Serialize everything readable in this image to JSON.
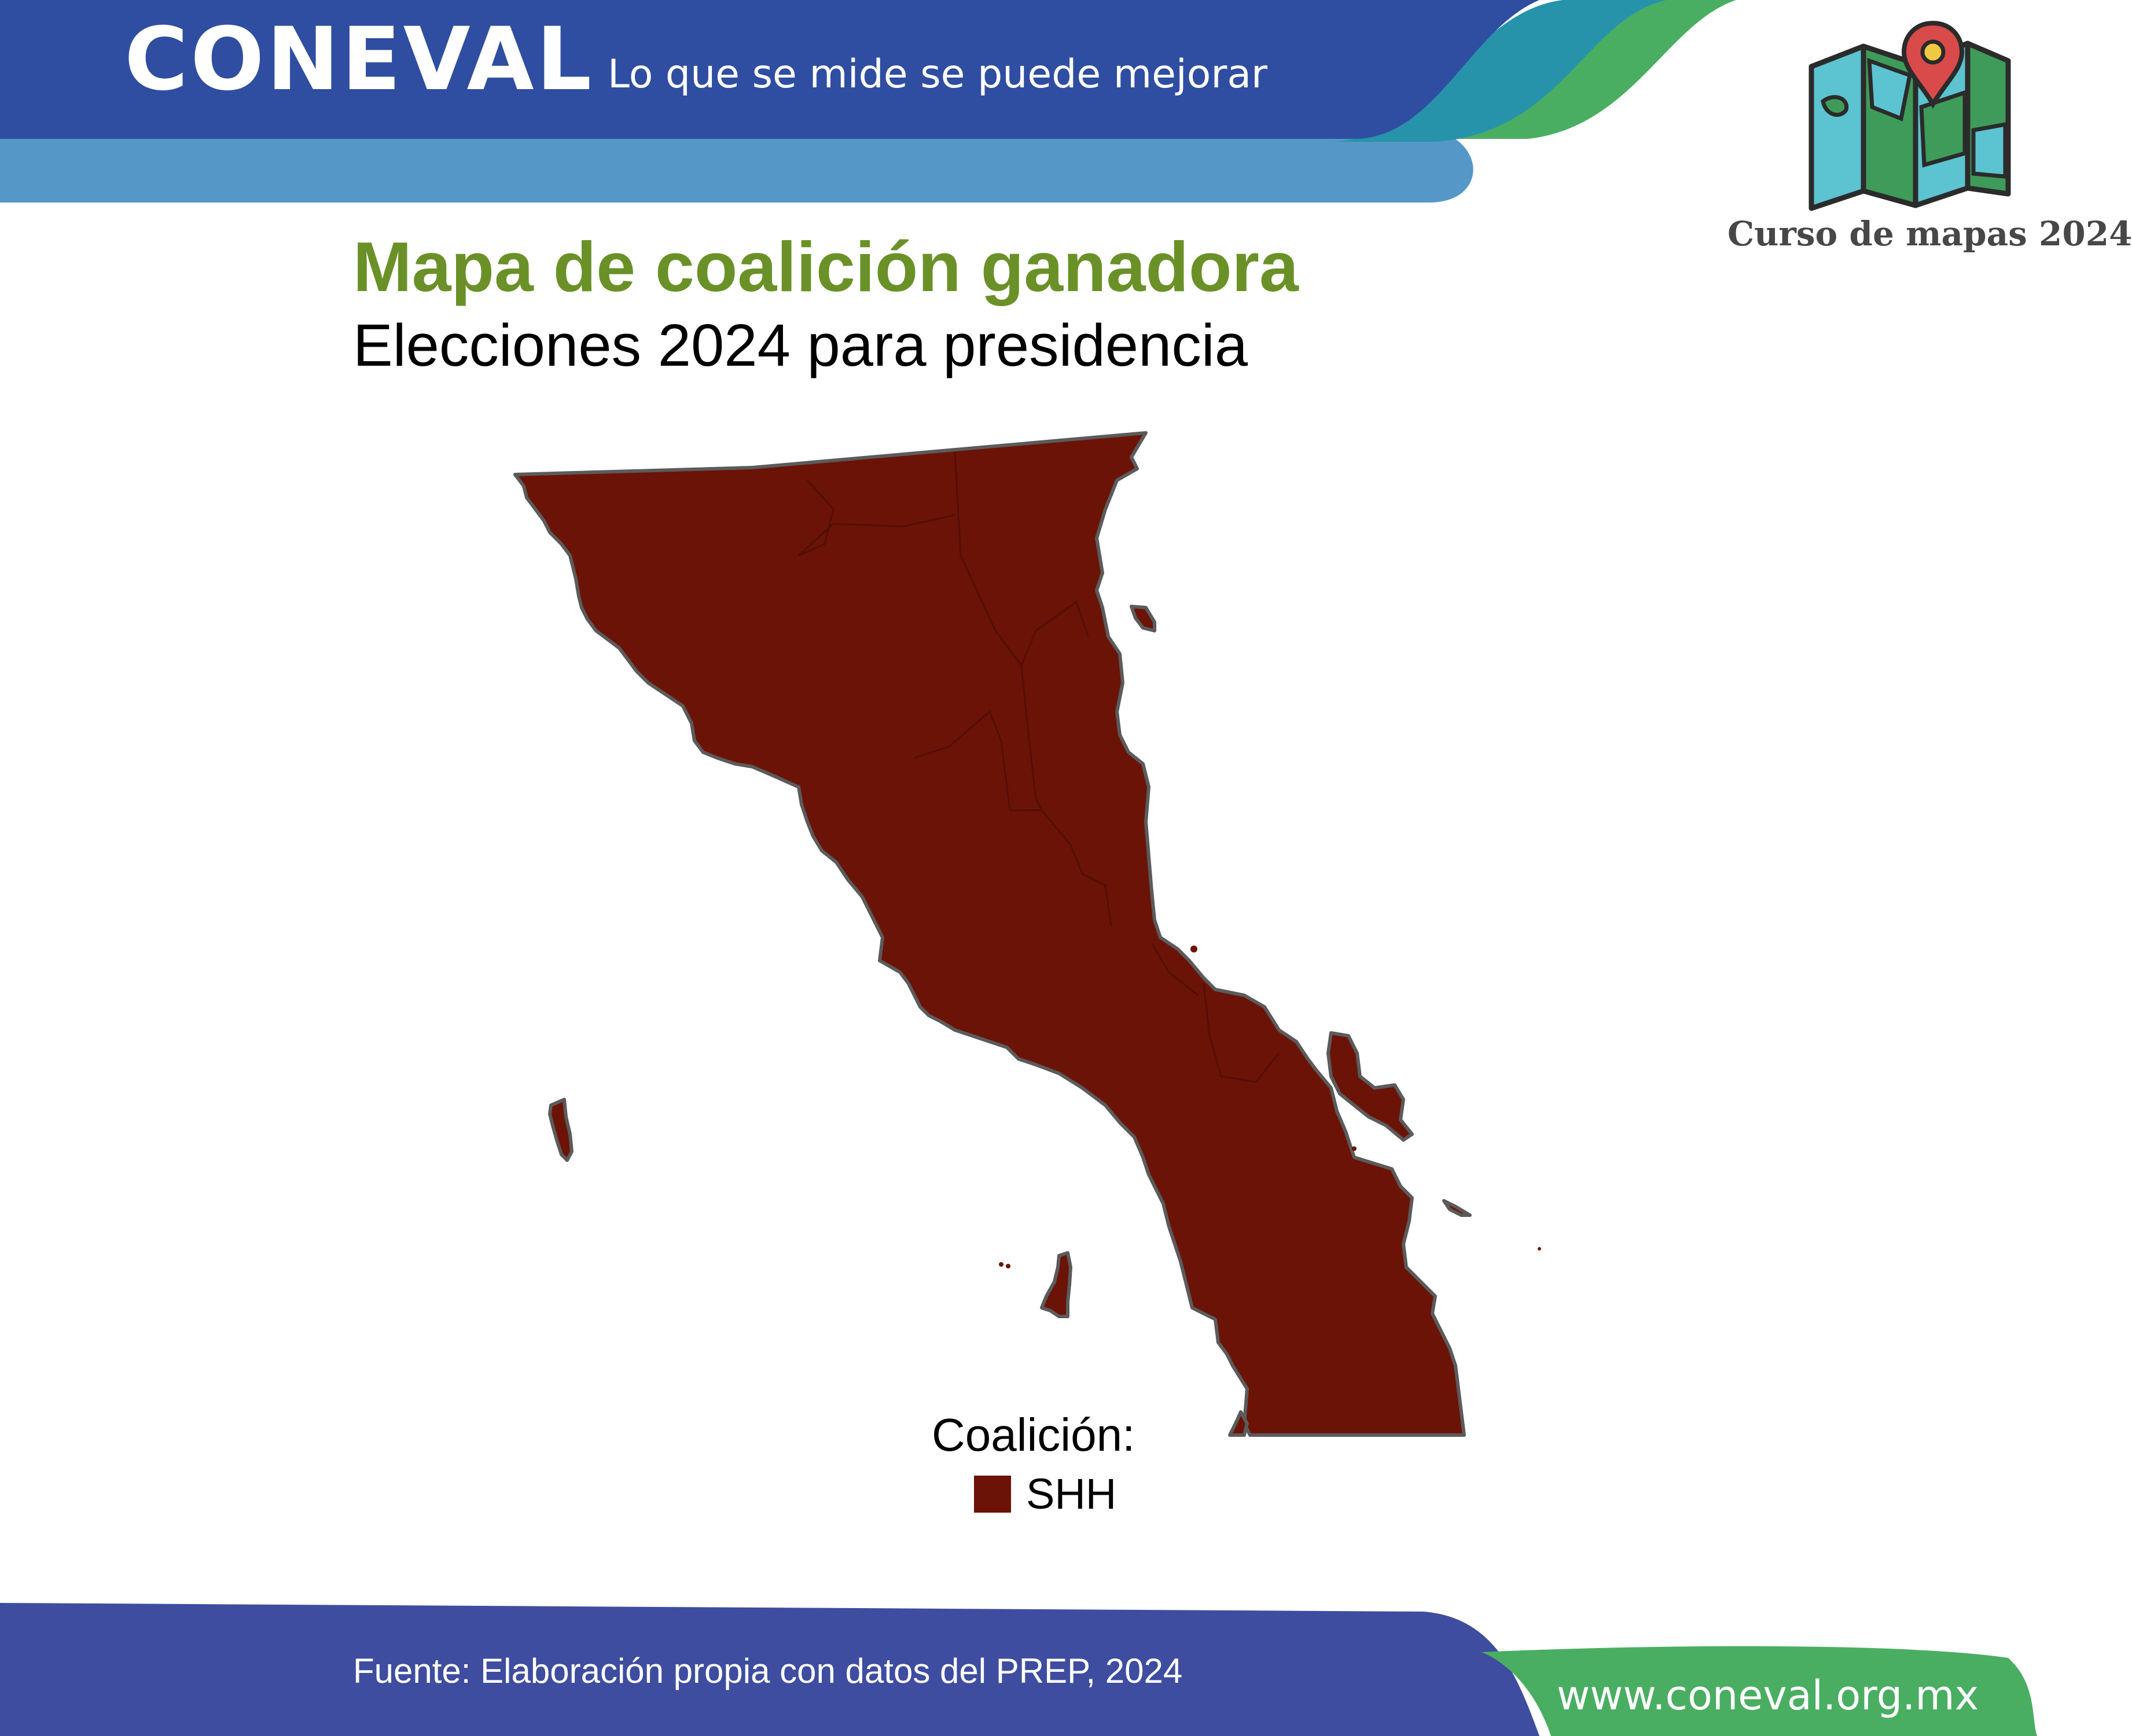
{
  "header": {
    "brand": "CONEVAL",
    "tagline": "Lo que se mide se puede mejorar",
    "colors": {
      "band_dark": "#2f4ea1",
      "band_light": "#5598c7",
      "teal": "#2793ab",
      "green": "#4aae62"
    }
  },
  "course": {
    "label": "Curso de mapas 2024",
    "icon": "folded-map-with-pin-icon"
  },
  "titles": {
    "title": "Mapa de coalición ganadora",
    "subtitle": "Elecciones 2024 para presidencia"
  },
  "map": {
    "region": "Baja California",
    "fill_color": "#6b1307",
    "border_color": "#5b5b5b",
    "winning_coalition": "SHH"
  },
  "legend": {
    "title": "Coalición:",
    "items": [
      {
        "label": "SHH",
        "color": "#6b1307"
      }
    ]
  },
  "footer": {
    "source": "Fuente: Elaboración propia con datos del PREP, 2024",
    "website": "www.coneval.org.mx",
    "colors": {
      "band": "#3e4d9f",
      "green": "#4aae62"
    }
  }
}
